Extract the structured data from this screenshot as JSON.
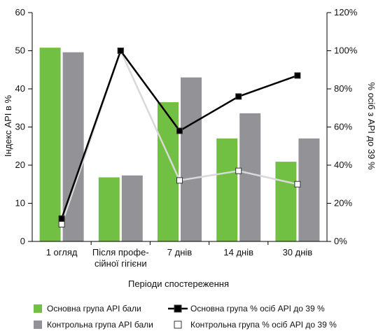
{
  "chart_data": {
    "type": "bar",
    "categories": [
      [
        "1 огляд"
      ],
      [
        "Після профе-",
        "сійної гігієни"
      ],
      [
        "7 днів"
      ],
      [
        "14 днів"
      ],
      [
        "30 днів"
      ]
    ],
    "xlabel": "Періоди спостереження",
    "ylabel_left": "Індекс API в %",
    "ylabel_right": "% осіб з API до 39 %",
    "ylim_left": [
      0,
      60
    ],
    "yticks_left": [
      0,
      10,
      20,
      30,
      40,
      50,
      60
    ],
    "ylim_right": [
      0,
      120
    ],
    "yticks_right": [
      0,
      20,
      40,
      60,
      80,
      100,
      120
    ],
    "yticks_right_labels": [
      "0%",
      "20%",
      "40%",
      "60%",
      "80%",
      "100%",
      "120%"
    ],
    "bar_series": [
      {
        "name": "Основна група API бали",
        "color": "#72c043",
        "values": [
          50.8,
          16.8,
          36.5,
          27.0,
          20.9
        ]
      },
      {
        "name": "Контрольна група API бали",
        "color": "#939397",
        "values": [
          49.6,
          17.3,
          43.0,
          33.6,
          27.0
        ]
      }
    ],
    "line_series": [
      {
        "name": "Основна група % осіб API до 39 %",
        "color": "#000000",
        "marker_fill": "#000000",
        "axis": "right",
        "values": [
          12,
          100,
          58,
          76,
          87
        ]
      },
      {
        "name": "Контрольна група % осіб API до 39 %",
        "color": "#d9d9d9",
        "marker_fill": "#ffffff",
        "axis": "right",
        "values": [
          9,
          100,
          32,
          37,
          30
        ]
      }
    ],
    "grid": false,
    "legend_position": "bottom"
  }
}
